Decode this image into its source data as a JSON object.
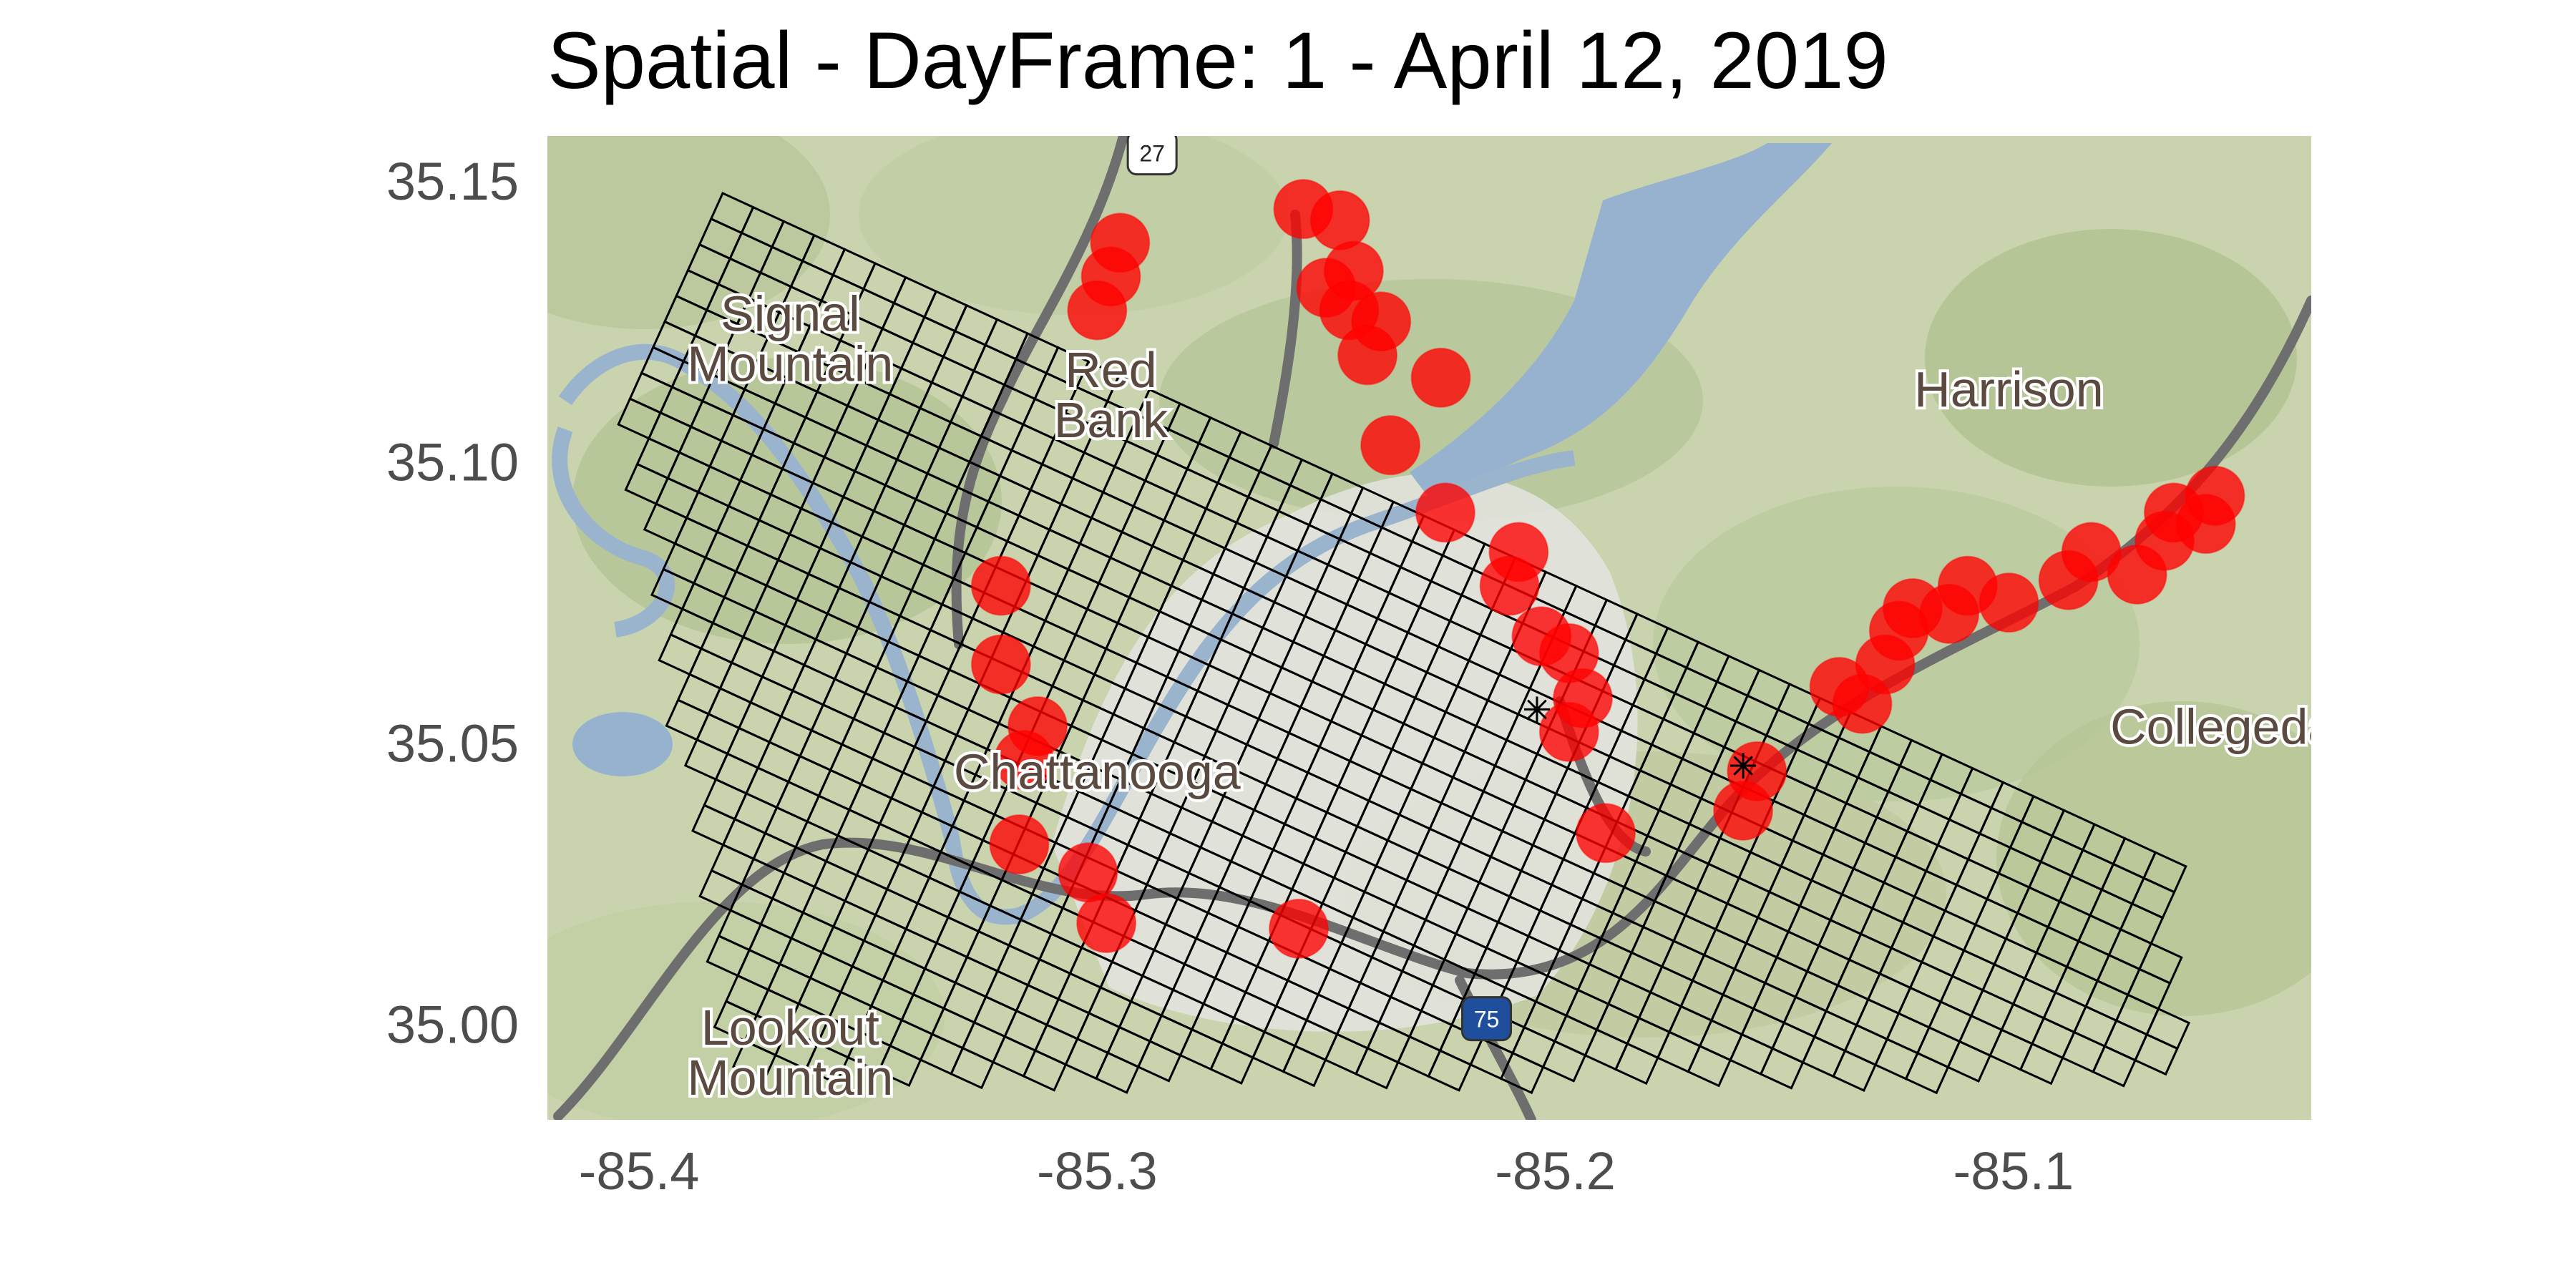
{
  "title": "Spatial - DayFrame: 1 - April 12, 2019",
  "chart_data": {
    "type": "scatter",
    "title": "Spatial - DayFrame: 1 - April 12, 2019",
    "xlabel": "",
    "ylabel": "",
    "xlim": [
      -85.42,
      -85.035
    ],
    "ylim": [
      34.983,
      35.158
    ],
    "x_ticks": [
      {
        "value": -85.4,
        "label": "-85.4"
      },
      {
        "value": -85.3,
        "label": "-85.3"
      },
      {
        "value": -85.2,
        "label": "-85.2"
      },
      {
        "value": -85.1,
        "label": "-85.1"
      }
    ],
    "y_ticks": [
      {
        "value": 35.15,
        "label": "35.15"
      },
      {
        "value": 35.1,
        "label": "35.10"
      },
      {
        "value": 35.05,
        "label": "35.05"
      },
      {
        "value": 35.0,
        "label": "35.00"
      }
    ],
    "basemap_labels": [
      {
        "text": "Signal Mountain",
        "lon": -85.367,
        "lat": 35.122
      },
      {
        "text": "Red Bank",
        "lon": -85.297,
        "lat": 35.112
      },
      {
        "text": "Harrison",
        "lon": -85.101,
        "lat": 35.113
      },
      {
        "text": "Chattanooga",
        "lon": -85.3,
        "lat": 35.045
      },
      {
        "text": "Collegedale",
        "lon": -85.05,
        "lat": 35.053
      },
      {
        "text": "Lookout Mountain",
        "lon": -85.367,
        "lat": 34.995
      },
      {
        "text": "27",
        "lon": -85.288,
        "lat": 35.155
      },
      {
        "text": "75",
        "lon": -85.215,
        "lat": 35.001
      }
    ],
    "centroids": [
      {
        "lon": -85.204,
        "lat": 35.056
      },
      {
        "lon": -85.159,
        "lat": 35.046
      }
    ],
    "series": [
      {
        "marker": "circle",
        "color": "#ff0000",
        "points": [
          [
            -85.3,
            35.127
          ],
          [
            -85.297,
            35.133
          ],
          [
            -85.295,
            35.139
          ],
          [
            -85.255,
            35.145
          ],
          [
            -85.247,
            35.143
          ],
          [
            -85.25,
            35.131
          ],
          [
            -85.244,
            35.134
          ],
          [
            -85.245,
            35.127
          ],
          [
            -85.238,
            35.125
          ],
          [
            -85.241,
            35.119
          ],
          [
            -85.225,
            35.115
          ],
          [
            -85.236,
            35.103
          ],
          [
            -85.224,
            35.091
          ],
          [
            -85.208,
            35.084
          ],
          [
            -85.21,
            35.078
          ],
          [
            -85.203,
            35.069
          ],
          [
            -85.197,
            35.066
          ],
          [
            -85.194,
            35.058
          ],
          [
            -85.197,
            35.052
          ],
          [
            -85.189,
            35.034
          ],
          [
            -85.321,
            35.078
          ],
          [
            -85.321,
            35.064
          ],
          [
            -85.313,
            35.053
          ],
          [
            -85.316,
            35.047
          ],
          [
            -85.317,
            35.032
          ],
          [
            -85.302,
            35.027
          ],
          [
            -85.298,
            35.018
          ],
          [
            -85.256,
            35.017
          ],
          [
            -85.156,
            35.045
          ],
          [
            -85.159,
            35.038
          ],
          [
            -85.138,
            35.06
          ],
          [
            -85.133,
            35.057
          ],
          [
            -85.128,
            35.064
          ],
          [
            -85.125,
            35.07
          ],
          [
            -85.122,
            35.074
          ],
          [
            -85.114,
            35.073
          ],
          [
            -85.11,
            35.078
          ],
          [
            -85.101,
            35.075
          ],
          [
            -85.088,
            35.079
          ],
          [
            -85.083,
            35.084
          ],
          [
            -85.073,
            35.08
          ],
          [
            -85.067,
            35.086
          ],
          [
            -85.065,
            35.091
          ],
          [
            -85.058,
            35.089
          ],
          [
            -85.056,
            35.094
          ]
        ]
      }
    ],
    "grid": true,
    "legend": "none"
  }
}
